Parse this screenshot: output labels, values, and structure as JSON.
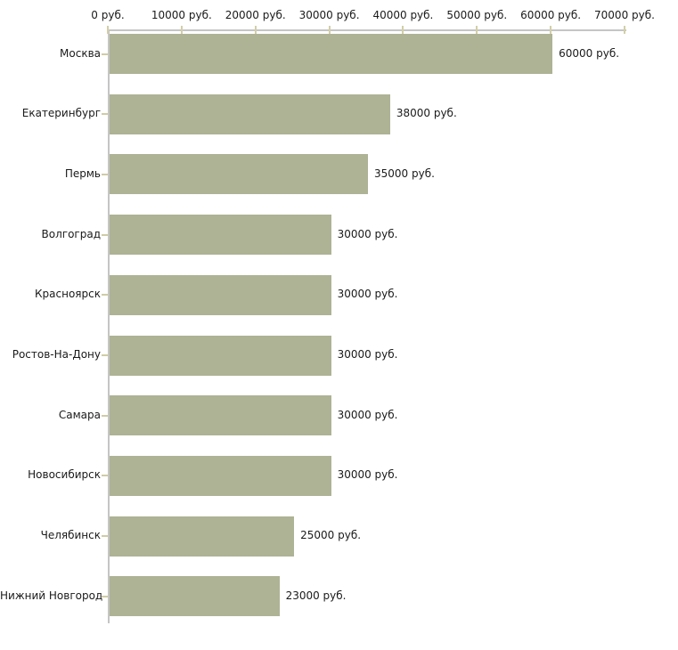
{
  "chart_data": {
    "type": "bar",
    "orientation": "horizontal",
    "title": "",
    "xlabel": "",
    "ylabel": "",
    "xlim": [
      0,
      70000
    ],
    "grid": false,
    "legend": false,
    "categories": [
      "Москва",
      "Екатеринбург",
      "Пермь",
      "Волгоград",
      "Красноярск",
      "Ростов-На-Дону",
      "Самара",
      "Новосибирск",
      "Челябинск",
      "Нижний Новгород"
    ],
    "values": [
      60000,
      38000,
      35000,
      30000,
      30000,
      30000,
      30000,
      30000,
      25000,
      23000
    ],
    "value_labels": [
      "60000 руб.",
      "38000 руб.",
      "35000 руб.",
      "30000 руб.",
      "30000 руб.",
      "30000 руб.",
      "30000 руб.",
      "30000 руб.",
      "25000 руб.",
      "23000 руб."
    ],
    "x_ticks": [
      0,
      10000,
      20000,
      30000,
      40000,
      50000,
      60000,
      70000
    ],
    "x_tick_labels": [
      "0 руб.",
      "10000 руб.",
      "20000 руб.",
      "30000 руб.",
      "40000 руб.",
      "50000 руб.",
      "60000 руб.",
      "70000 руб."
    ],
    "colors": {
      "bar": "#adb394",
      "axis": "#c5c5c5",
      "tick": "#d2cfa8",
      "category_tick": "#cfcca6",
      "text": "#1a1a1a",
      "background": "#ffffff"
    }
  }
}
